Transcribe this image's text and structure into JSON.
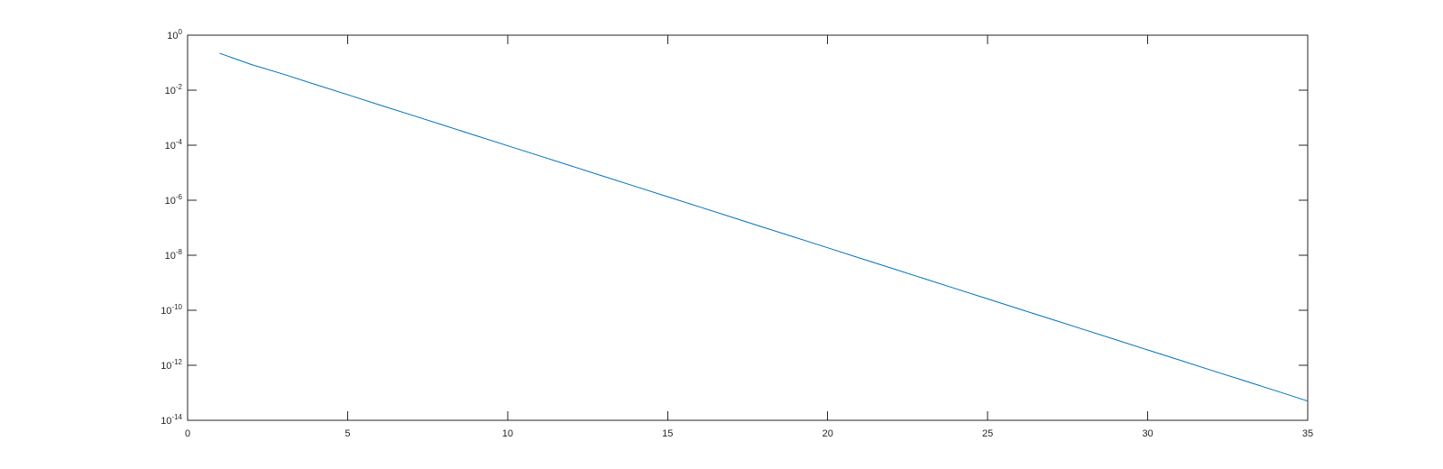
{
  "chart_data": {
    "type": "line",
    "title": "",
    "xlabel": "",
    "ylabel": "",
    "xlim": [
      0,
      35
    ],
    "ylim": [
      1e-14,
      1
    ],
    "yscale": "log",
    "grid": false,
    "box": true,
    "x_ticks": [
      0,
      5,
      10,
      15,
      20,
      25,
      30,
      35
    ],
    "y_ticks": [
      {
        "base": "10",
        "exp": "0",
        "value": 1
      },
      {
        "base": "10",
        "exp": "-2",
        "value": 0.01
      },
      {
        "base": "10",
        "exp": "-4",
        "value": 0.0001
      },
      {
        "base": "10",
        "exp": "-6",
        "value": 1e-06
      },
      {
        "base": "10",
        "exp": "-8",
        "value": 1e-08
      },
      {
        "base": "10",
        "exp": "-10",
        "value": 1e-10
      },
      {
        "base": "10",
        "exp": "-12",
        "value": 1e-12
      },
      {
        "base": "10",
        "exp": "-14",
        "value": 1e-14
      }
    ],
    "series": [
      {
        "color": "#0072BD",
        "x": [
          1,
          2,
          3,
          4,
          5,
          6,
          7,
          8,
          9,
          10,
          11,
          12,
          13,
          14,
          15,
          16,
          17,
          18,
          19,
          20,
          21,
          22,
          23,
          24,
          25,
          26,
          27,
          28,
          29,
          30,
          31,
          32,
          33,
          34,
          35
        ],
        "y": [
          0.22,
          0.085,
          0.038,
          0.016,
          0.0069,
          0.0029,
          0.00125,
          0.00053,
          0.000225,
          9.6e-05,
          4.1e-05,
          1.75e-05,
          7.4e-06,
          3.15e-06,
          1.34e-06,
          5.7e-07,
          2.43e-07,
          1.03e-07,
          4.4e-08,
          1.87e-08,
          7.9e-09,
          3.37e-09,
          1.43e-09,
          6.1e-10,
          2.6e-10,
          1.1e-10,
          4.7e-11,
          2e-11,
          8.5e-12,
          3.6e-12,
          1.54e-12,
          6.5e-13,
          2.8e-13,
          1.19e-13,
          5e-14
        ]
      }
    ]
  }
}
